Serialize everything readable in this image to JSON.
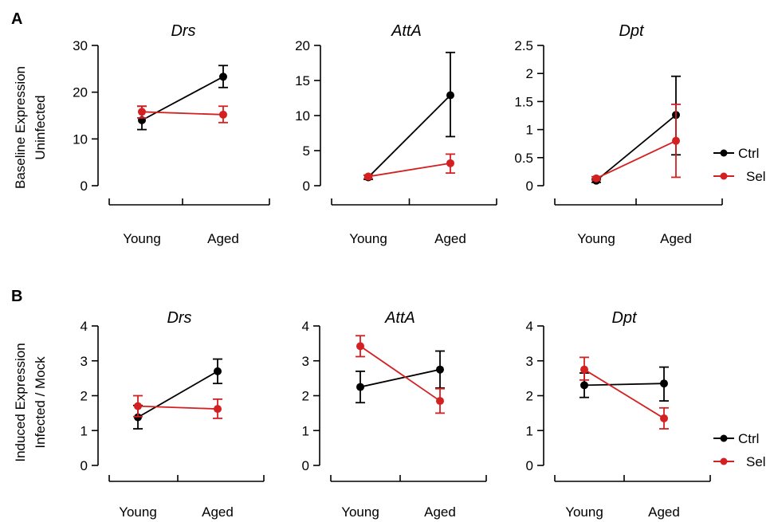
{
  "figure": {
    "panel_labels": [
      "A",
      "B"
    ],
    "rows": [
      {
        "ylabel_line1": "Baseline Expression",
        "ylabel_line2": "Uninfected"
      },
      {
        "ylabel_line1": "Induced Expression",
        "ylabel_line2": "Infected / Mock"
      }
    ],
    "legend": [
      {
        "name": "Ctrl",
        "color": "#000000"
      },
      {
        "name": "Sel",
        "color": "#d42020"
      }
    ]
  },
  "chart_data": [
    {
      "type": "line",
      "title": "Drs",
      "categories": [
        "Young",
        "Aged"
      ],
      "ylim": [
        0,
        30
      ],
      "yticks": [
        "0",
        "10",
        "20",
        "30"
      ],
      "grid": false,
      "series": [
        {
          "name": "Ctrl",
          "color": "#000000",
          "values": [
            14.0,
            23.3
          ],
          "err_low": [
            12.0,
            21.0
          ],
          "err_high": [
            17.0,
            25.7
          ]
        },
        {
          "name": "Sel",
          "color": "#d42020",
          "values": [
            15.8,
            15.2
          ],
          "err_low": [
            14.5,
            13.5
          ],
          "err_high": [
            17.0,
            17.0
          ]
        }
      ]
    },
    {
      "type": "line",
      "title": "AttA",
      "categories": [
        "Young",
        "Aged"
      ],
      "ylim": [
        0,
        20
      ],
      "yticks": [
        "0",
        "5",
        "10",
        "15",
        "20"
      ],
      "grid": false,
      "series": [
        {
          "name": "Ctrl",
          "color": "#000000",
          "values": [
            1.2,
            12.9
          ],
          "err_low": [
            0.9,
            7.0
          ],
          "err_high": [
            1.5,
            19.0
          ]
        },
        {
          "name": "Sel",
          "color": "#d42020",
          "values": [
            1.3,
            3.2
          ],
          "err_low": [
            1.0,
            1.8
          ],
          "err_high": [
            1.5,
            4.5
          ]
        }
      ]
    },
    {
      "type": "line",
      "title": "Dpt",
      "categories": [
        "Young",
        "Aged"
      ],
      "ylim": [
        0,
        2.5
      ],
      "yticks": [
        "0",
        "0.5",
        "1",
        "1.5",
        "2",
        "2.5"
      ],
      "grid": false,
      "series": [
        {
          "name": "Ctrl",
          "color": "#000000",
          "values": [
            0.09,
            1.26
          ],
          "err_low": [
            0.06,
            0.55
          ],
          "err_high": [
            0.12,
            1.95
          ]
        },
        {
          "name": "Sel",
          "color": "#d42020",
          "values": [
            0.13,
            0.8
          ],
          "err_low": [
            0.1,
            0.15
          ],
          "err_high": [
            0.16,
            1.45
          ]
        }
      ]
    },
    {
      "type": "line",
      "title": "Drs",
      "categories": [
        "Young",
        "Aged"
      ],
      "ylim": [
        0,
        4
      ],
      "yticks": [
        "0",
        "1",
        "2",
        "3",
        "4"
      ],
      "grid": false,
      "series": [
        {
          "name": "Ctrl",
          "color": "#000000",
          "values": [
            1.38,
            2.7
          ],
          "err_low": [
            1.05,
            2.35
          ],
          "err_high": [
            1.72,
            3.05
          ]
        },
        {
          "name": "Sel",
          "color": "#d42020",
          "values": [
            1.7,
            1.62
          ],
          "err_low": [
            1.4,
            1.35
          ],
          "err_high": [
            2.0,
            1.9
          ]
        }
      ]
    },
    {
      "type": "line",
      "title": "AttA",
      "categories": [
        "Young",
        "Aged"
      ],
      "ylim": [
        0,
        4
      ],
      "yticks": [
        "0",
        "1",
        "2",
        "3",
        "4"
      ],
      "grid": false,
      "series": [
        {
          "name": "Ctrl",
          "color": "#000000",
          "values": [
            2.25,
            2.75
          ],
          "err_low": [
            1.8,
            2.22
          ],
          "err_high": [
            2.7,
            3.28
          ]
        },
        {
          "name": "Sel",
          "color": "#d42020",
          "values": [
            3.42,
            1.85
          ],
          "err_low": [
            3.12,
            1.5
          ],
          "err_high": [
            3.72,
            2.2
          ]
        }
      ]
    },
    {
      "type": "line",
      "title": "Dpt",
      "categories": [
        "Young",
        "Aged"
      ],
      "ylim": [
        0,
        4
      ],
      "yticks": [
        "0",
        "1",
        "2",
        "3",
        "4"
      ],
      "grid": false,
      "series": [
        {
          "name": "Ctrl",
          "color": "#000000",
          "values": [
            2.3,
            2.35
          ],
          "err_low": [
            1.95,
            1.85
          ],
          "err_high": [
            2.65,
            2.82
          ]
        },
        {
          "name": "Sel",
          "color": "#d42020",
          "values": [
            2.75,
            1.35
          ],
          "err_low": [
            2.45,
            1.05
          ],
          "err_high": [
            3.1,
            1.65
          ]
        }
      ]
    }
  ]
}
